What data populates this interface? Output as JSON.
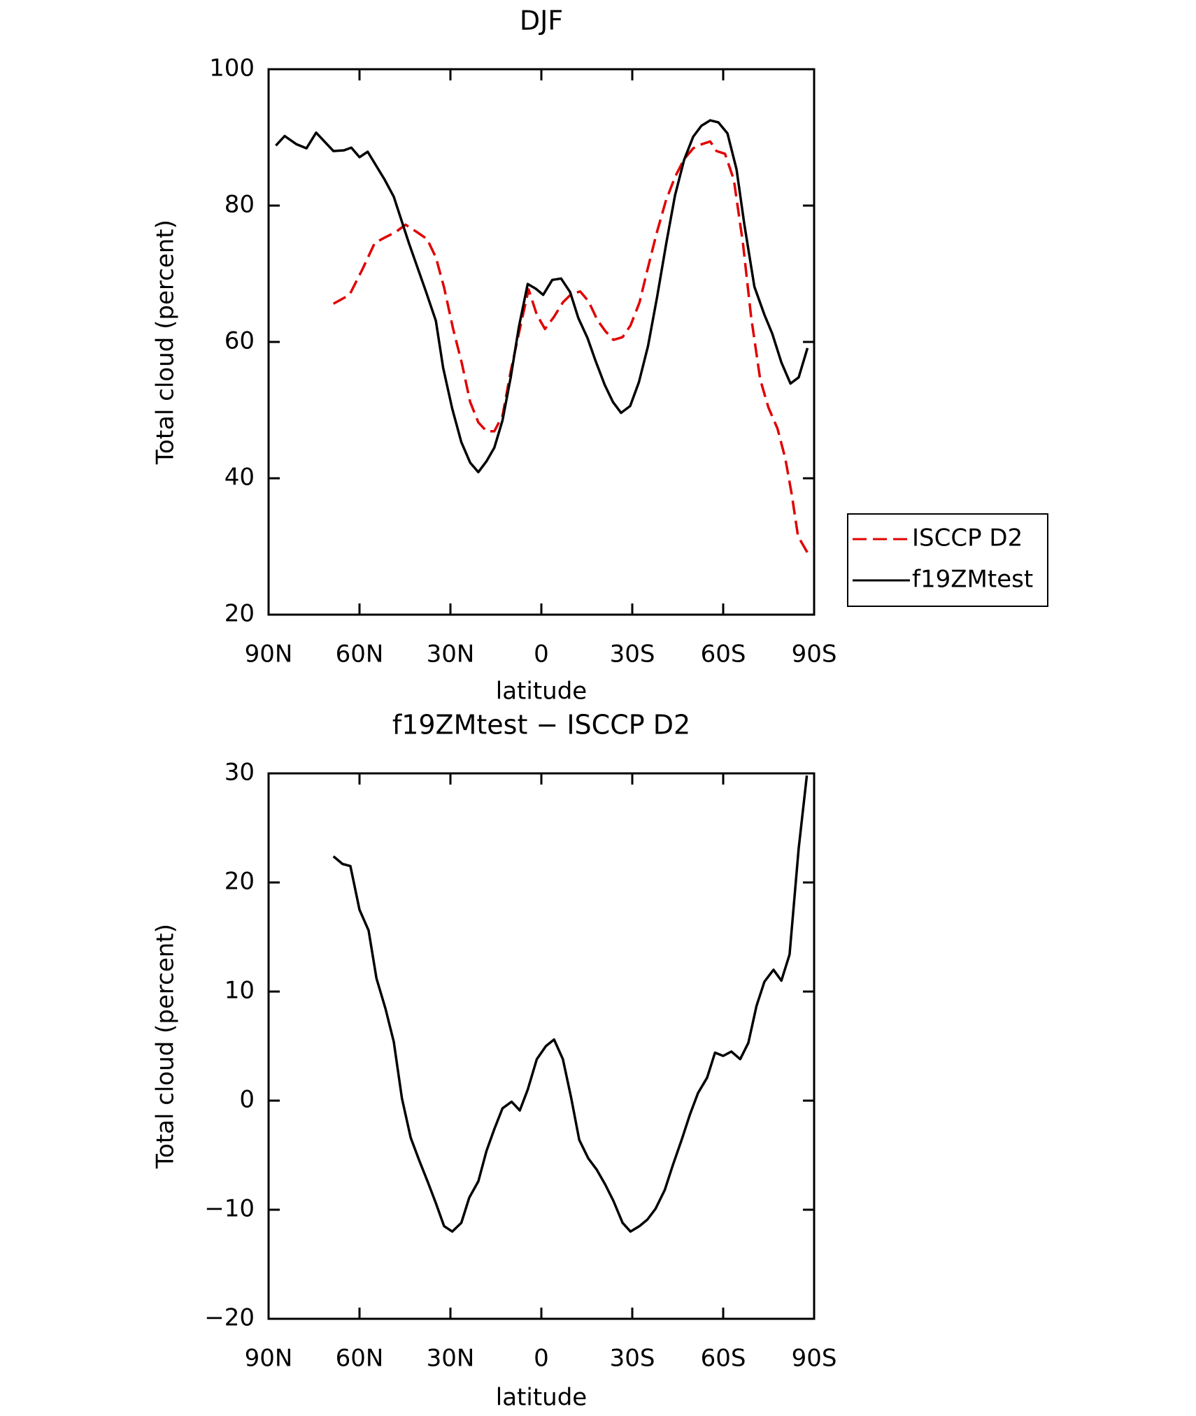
{
  "chart_data": [
    {
      "type": "line",
      "title": "DJF",
      "x_label": "latitude",
      "y_label": "Total cloud (percent)",
      "xlim": [
        90,
        -90
      ],
      "xticks": [
        {
          "value": 90,
          "label": "90N"
        },
        {
          "value": 60,
          "label": "60N"
        },
        {
          "value": 30,
          "label": "30N"
        },
        0,
        {
          "value": -30,
          "label": "30S"
        },
        {
          "value": -60,
          "label": "60S"
        },
        {
          "value": -90,
          "label": "90S"
        }
      ],
      "ylim": [
        20,
        100
      ],
      "yticks": [
        20,
        40,
        60,
        80,
        100
      ],
      "legend": "right",
      "series": [
        {
          "name": "ISCCP D2",
          "color": "#e00000",
          "style": "dashed",
          "x": [
            68.6,
            63.3,
            59.1,
            55.0,
            51.7,
            48.1,
            44.8,
            41.0,
            37.7,
            34.8,
            32.1,
            29.1,
            26.2,
            23.5,
            20.8,
            18.1,
            15.5,
            12.8,
            10.1,
            7.1,
            4.2,
            1.5,
            -1.2,
            -4.2,
            -7.1,
            -9.8,
            -12.8,
            -15.5,
            -18.5,
            -21.1,
            -23.8,
            -26.8,
            -29.4,
            -32.4,
            -35.0,
            -38.0,
            -41.0,
            -44.1,
            -47.1,
            -50.1,
            -52.9,
            -55.7,
            -57.8,
            -60.6,
            -63.5,
            -66.5,
            -69.2,
            -72.2,
            -74.9,
            -77.9,
            -80.5,
            -82.6,
            -84.7,
            -87.8
          ],
          "values": [
            65.6,
            66.9,
            70.6,
            74.5,
            75.3,
            76.1,
            77.2,
            76.1,
            75.1,
            72.4,
            68.0,
            61.9,
            56.8,
            51.2,
            48.2,
            46.9,
            46.9,
            49.2,
            55.7,
            61.9,
            67.7,
            64.0,
            61.9,
            63.7,
            65.8,
            67.0,
            67.4,
            66.0,
            63.2,
            61.6,
            60.3,
            60.7,
            62.4,
            65.8,
            70.6,
            75.9,
            80.6,
            84.2,
            86.8,
            88.4,
            89.0,
            89.4,
            88.0,
            87.6,
            83.8,
            74.5,
            63.7,
            54.5,
            50.4,
            47.3,
            42.9,
            37.7,
            31.5,
            29.1
          ]
        },
        {
          "name": "f19ZMtest",
          "color": "#000000",
          "style": "solid",
          "x": [
            87.6,
            84.7,
            80.8,
            77.5,
            74.3,
            68.6,
            65.1,
            62.7,
            60.0,
            57.3,
            51.7,
            48.7,
            43.7,
            38.0,
            34.8,
            32.4,
            29.4,
            26.4,
            23.5,
            20.8,
            18.1,
            15.5,
            12.8,
            10.1,
            7.4,
            4.5,
            1.8,
            -0.6,
            -3.6,
            -6.5,
            -9.5,
            -12.2,
            -15.2,
            -17.9,
            -20.9,
            -23.6,
            -26.3,
            -29.3,
            -32.2,
            -35.2,
            -38.2,
            -41.2,
            -44.1,
            -47.1,
            -50.1,
            -52.8,
            -55.7,
            -58.4,
            -61.4,
            -64.4,
            -67.0,
            -70.3,
            -73.6,
            -76.2,
            -79.2,
            -82.2,
            -84.9,
            -87.8
          ],
          "values": [
            88.8,
            90.2,
            89.0,
            88.4,
            90.7,
            88.0,
            88.1,
            88.5,
            87.1,
            87.9,
            83.8,
            81.3,
            74.5,
            67.3,
            63.1,
            56.2,
            50.2,
            45.3,
            42.3,
            40.9,
            42.5,
            44.5,
            48.5,
            54.8,
            62.2,
            68.5,
            67.8,
            66.9,
            69.1,
            69.3,
            67.3,
            63.5,
            60.6,
            57.2,
            53.7,
            51.2,
            49.6,
            50.6,
            54.1,
            59.4,
            66.6,
            74.4,
            81.5,
            86.7,
            90.1,
            91.7,
            92.5,
            92.2,
            90.6,
            85.3,
            77.2,
            68.1,
            64.0,
            61.2,
            57.0,
            53.9,
            54.8,
            59.1
          ]
        }
      ]
    },
    {
      "type": "line",
      "title": "f19ZMtest − ISCCP D2",
      "x_label": "latitude",
      "y_label": "Total cloud (percent)",
      "xlim": [
        90,
        -90
      ],
      "xticks": [
        {
          "value": 90,
          "label": "90N"
        },
        {
          "value": 60,
          "label": "60N"
        },
        {
          "value": 30,
          "label": "30N"
        },
        0,
        {
          "value": -30,
          "label": "30S"
        },
        {
          "value": -60,
          "label": "60S"
        },
        {
          "value": -90,
          "label": "90S"
        }
      ],
      "ylim": [
        -20,
        30
      ],
      "yticks": [
        {
          "value": -20,
          "label": "−20"
        },
        {
          "value": -10,
          "label": "−10"
        },
        0,
        10,
        20,
        30
      ],
      "series": [
        {
          "color": "#000000",
          "style": "solid",
          "x": [
            68.6,
            65.6,
            63.0,
            60.0,
            57.0,
            54.4,
            51.4,
            48.7,
            46.0,
            43.1,
            40.4,
            37.4,
            34.8,
            32.1,
            29.4,
            26.4,
            23.8,
            20.8,
            18.1,
            15.5,
            12.8,
            9.8,
            7.1,
            4.5,
            1.5,
            -1.5,
            -4.2,
            -7.1,
            -9.8,
            -12.5,
            -15.5,
            -18.2,
            -21.1,
            -23.8,
            -26.8,
            -29.4,
            -32.4,
            -35.0,
            -37.7,
            -40.7,
            -43.4,
            -46.4,
            -49.0,
            -51.7,
            -54.7,
            -57.3,
            -60.0,
            -62.7,
            -65.6,
            -68.3,
            -71.0,
            -73.6,
            -76.6,
            -79.2,
            -81.9,
            -84.9,
            -87.6
          ],
          "values": [
            22.4,
            21.7,
            21.5,
            17.5,
            15.6,
            11.2,
            8.4,
            5.4,
            0.2,
            -3.4,
            -5.4,
            -7.5,
            -9.4,
            -11.5,
            -12.0,
            -11.2,
            -8.9,
            -7.4,
            -4.6,
            -2.6,
            -0.7,
            -0.1,
            -0.9,
            1.0,
            3.8,
            5.0,
            5.6,
            3.8,
            0.3,
            -3.6,
            -5.3,
            -6.3,
            -7.7,
            -9.2,
            -11.2,
            -12.0,
            -11.5,
            -10.9,
            -9.9,
            -8.2,
            -5.9,
            -3.5,
            -1.3,
            0.7,
            2.1,
            4.4,
            4.1,
            4.5,
            3.8,
            5.3,
            8.7,
            10.9,
            12.0,
            11.0,
            13.4,
            23.1,
            29.8
          ]
        }
      ]
    }
  ]
}
